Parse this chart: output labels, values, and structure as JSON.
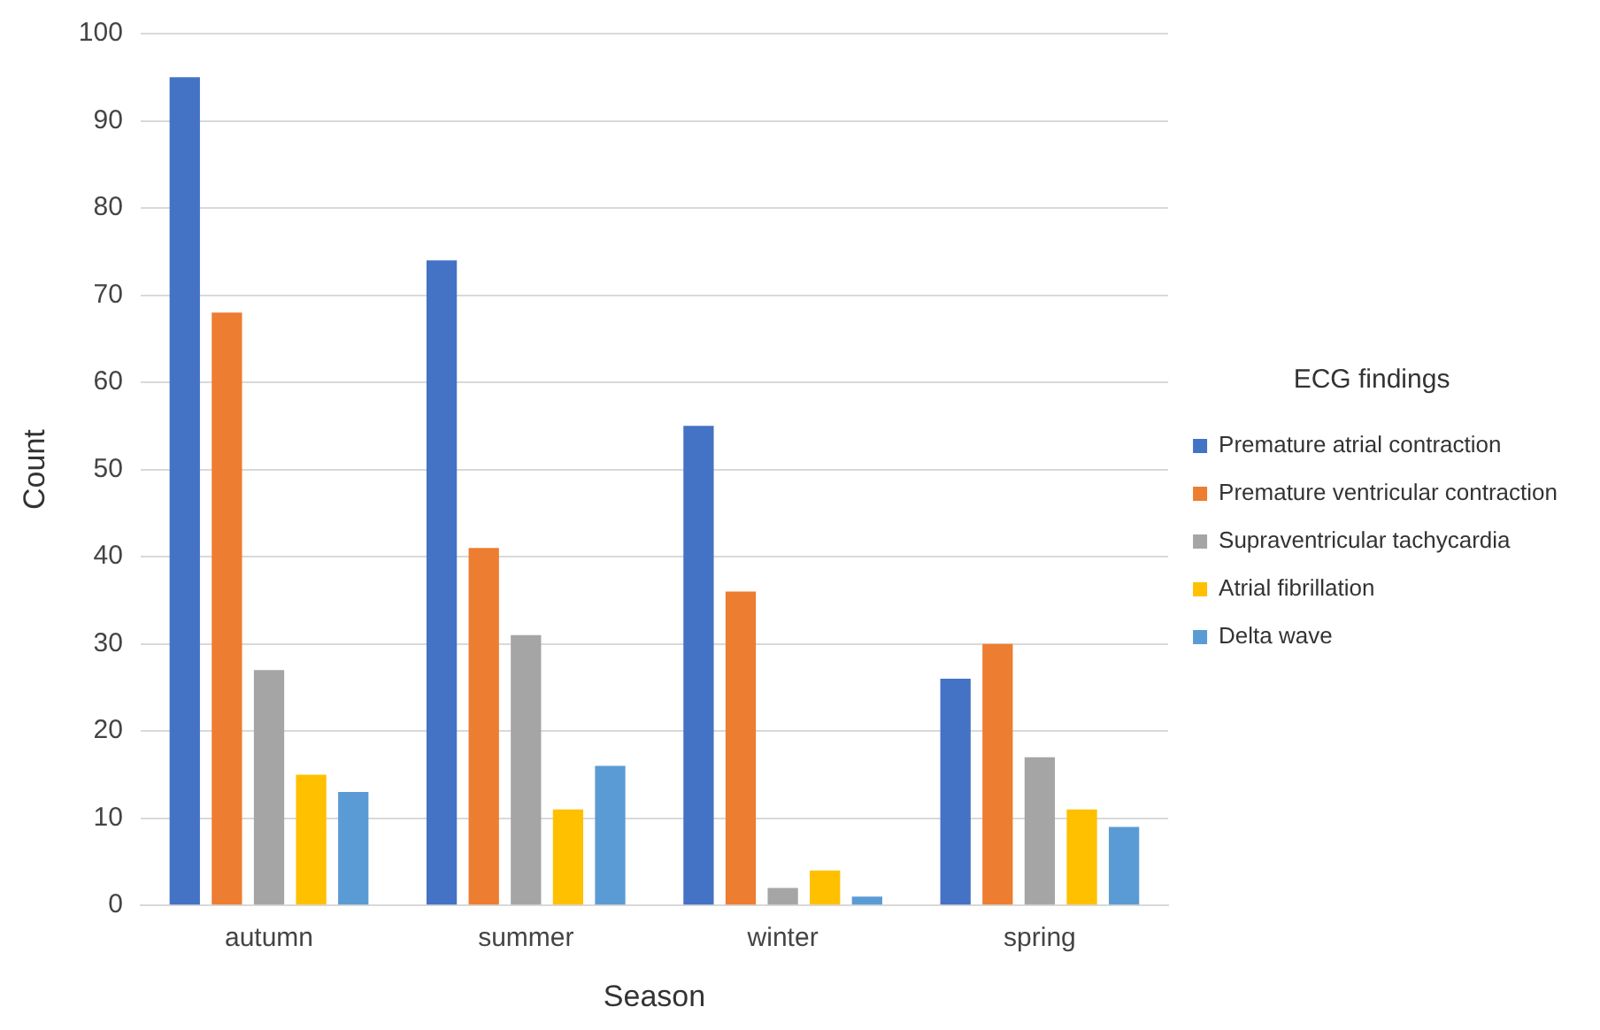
{
  "chart_data": {
    "type": "bar",
    "xlabel": "Season",
    "ylabel": "Count",
    "legend_title": "ECG findings",
    "categories": [
      "autumn",
      "summer",
      "winter",
      "spring"
    ],
    "series": [
      {
        "name": "Premature atrial contraction",
        "color": "#4472c4",
        "values": [
          95,
          74,
          55,
          26
        ]
      },
      {
        "name": "Premature ventricular contraction",
        "color": "#ed7d31",
        "values": [
          68,
          41,
          36,
          30
        ]
      },
      {
        "name": "Supraventricular tachycardia",
        "color": "#a5a5a5",
        "values": [
          27,
          31,
          2,
          17
        ]
      },
      {
        "name": "Atrial fibrillation",
        "color": "#ffc000",
        "values": [
          15,
          11,
          4,
          11
        ]
      },
      {
        "name": "Delta wave",
        "color": "#5b9bd5",
        "values": [
          13,
          16,
          1,
          9
        ]
      }
    ],
    "ylim": [
      0,
      100
    ],
    "yticks": [
      0,
      10,
      20,
      30,
      40,
      50,
      60,
      70,
      80,
      90,
      100
    ],
    "grid": "y",
    "legend": "right"
  }
}
